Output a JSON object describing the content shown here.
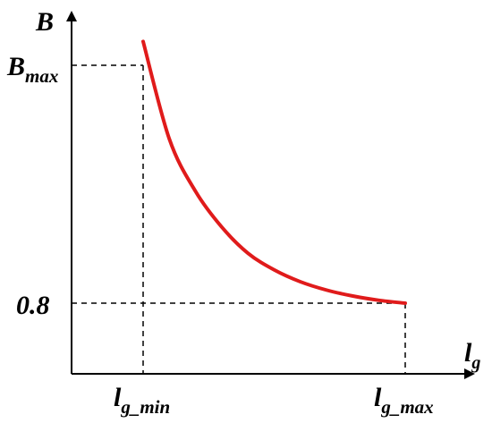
{
  "chart_data": {
    "type": "line",
    "title": "",
    "xlabel": {
      "base": "l",
      "sub": "g"
    },
    "ylabel": {
      "base": "B",
      "sub": ""
    },
    "x_ticks": [
      {
        "base": "l",
        "sub": "g_min"
      },
      {
        "base": "l",
        "sub": "g_max"
      }
    ],
    "y_ticks": [
      {
        "base": "B",
        "sub": "max"
      },
      {
        "base": "0.8",
        "sub": ""
      }
    ],
    "grid": false,
    "legend": "none",
    "series": [
      {
        "color": "#e01b1b",
        "points": [
          {
            "x": 0.0,
            "y": 1.1
          },
          {
            "x": 0.1,
            "y": 0.69
          },
          {
            "x": 0.2,
            "y": 0.47
          },
          {
            "x": 0.3,
            "y": 0.32
          },
          {
            "x": 0.4,
            "y": 0.21
          },
          {
            "x": 0.5,
            "y": 0.14
          },
          {
            "x": 0.6,
            "y": 0.09
          },
          {
            "x": 0.7,
            "y": 0.055
          },
          {
            "x": 0.8,
            "y": 0.03
          },
          {
            "x": 0.9,
            "y": 0.012
          },
          {
            "x": 1.0,
            "y": 0.0
          }
        ]
      }
    ]
  }
}
